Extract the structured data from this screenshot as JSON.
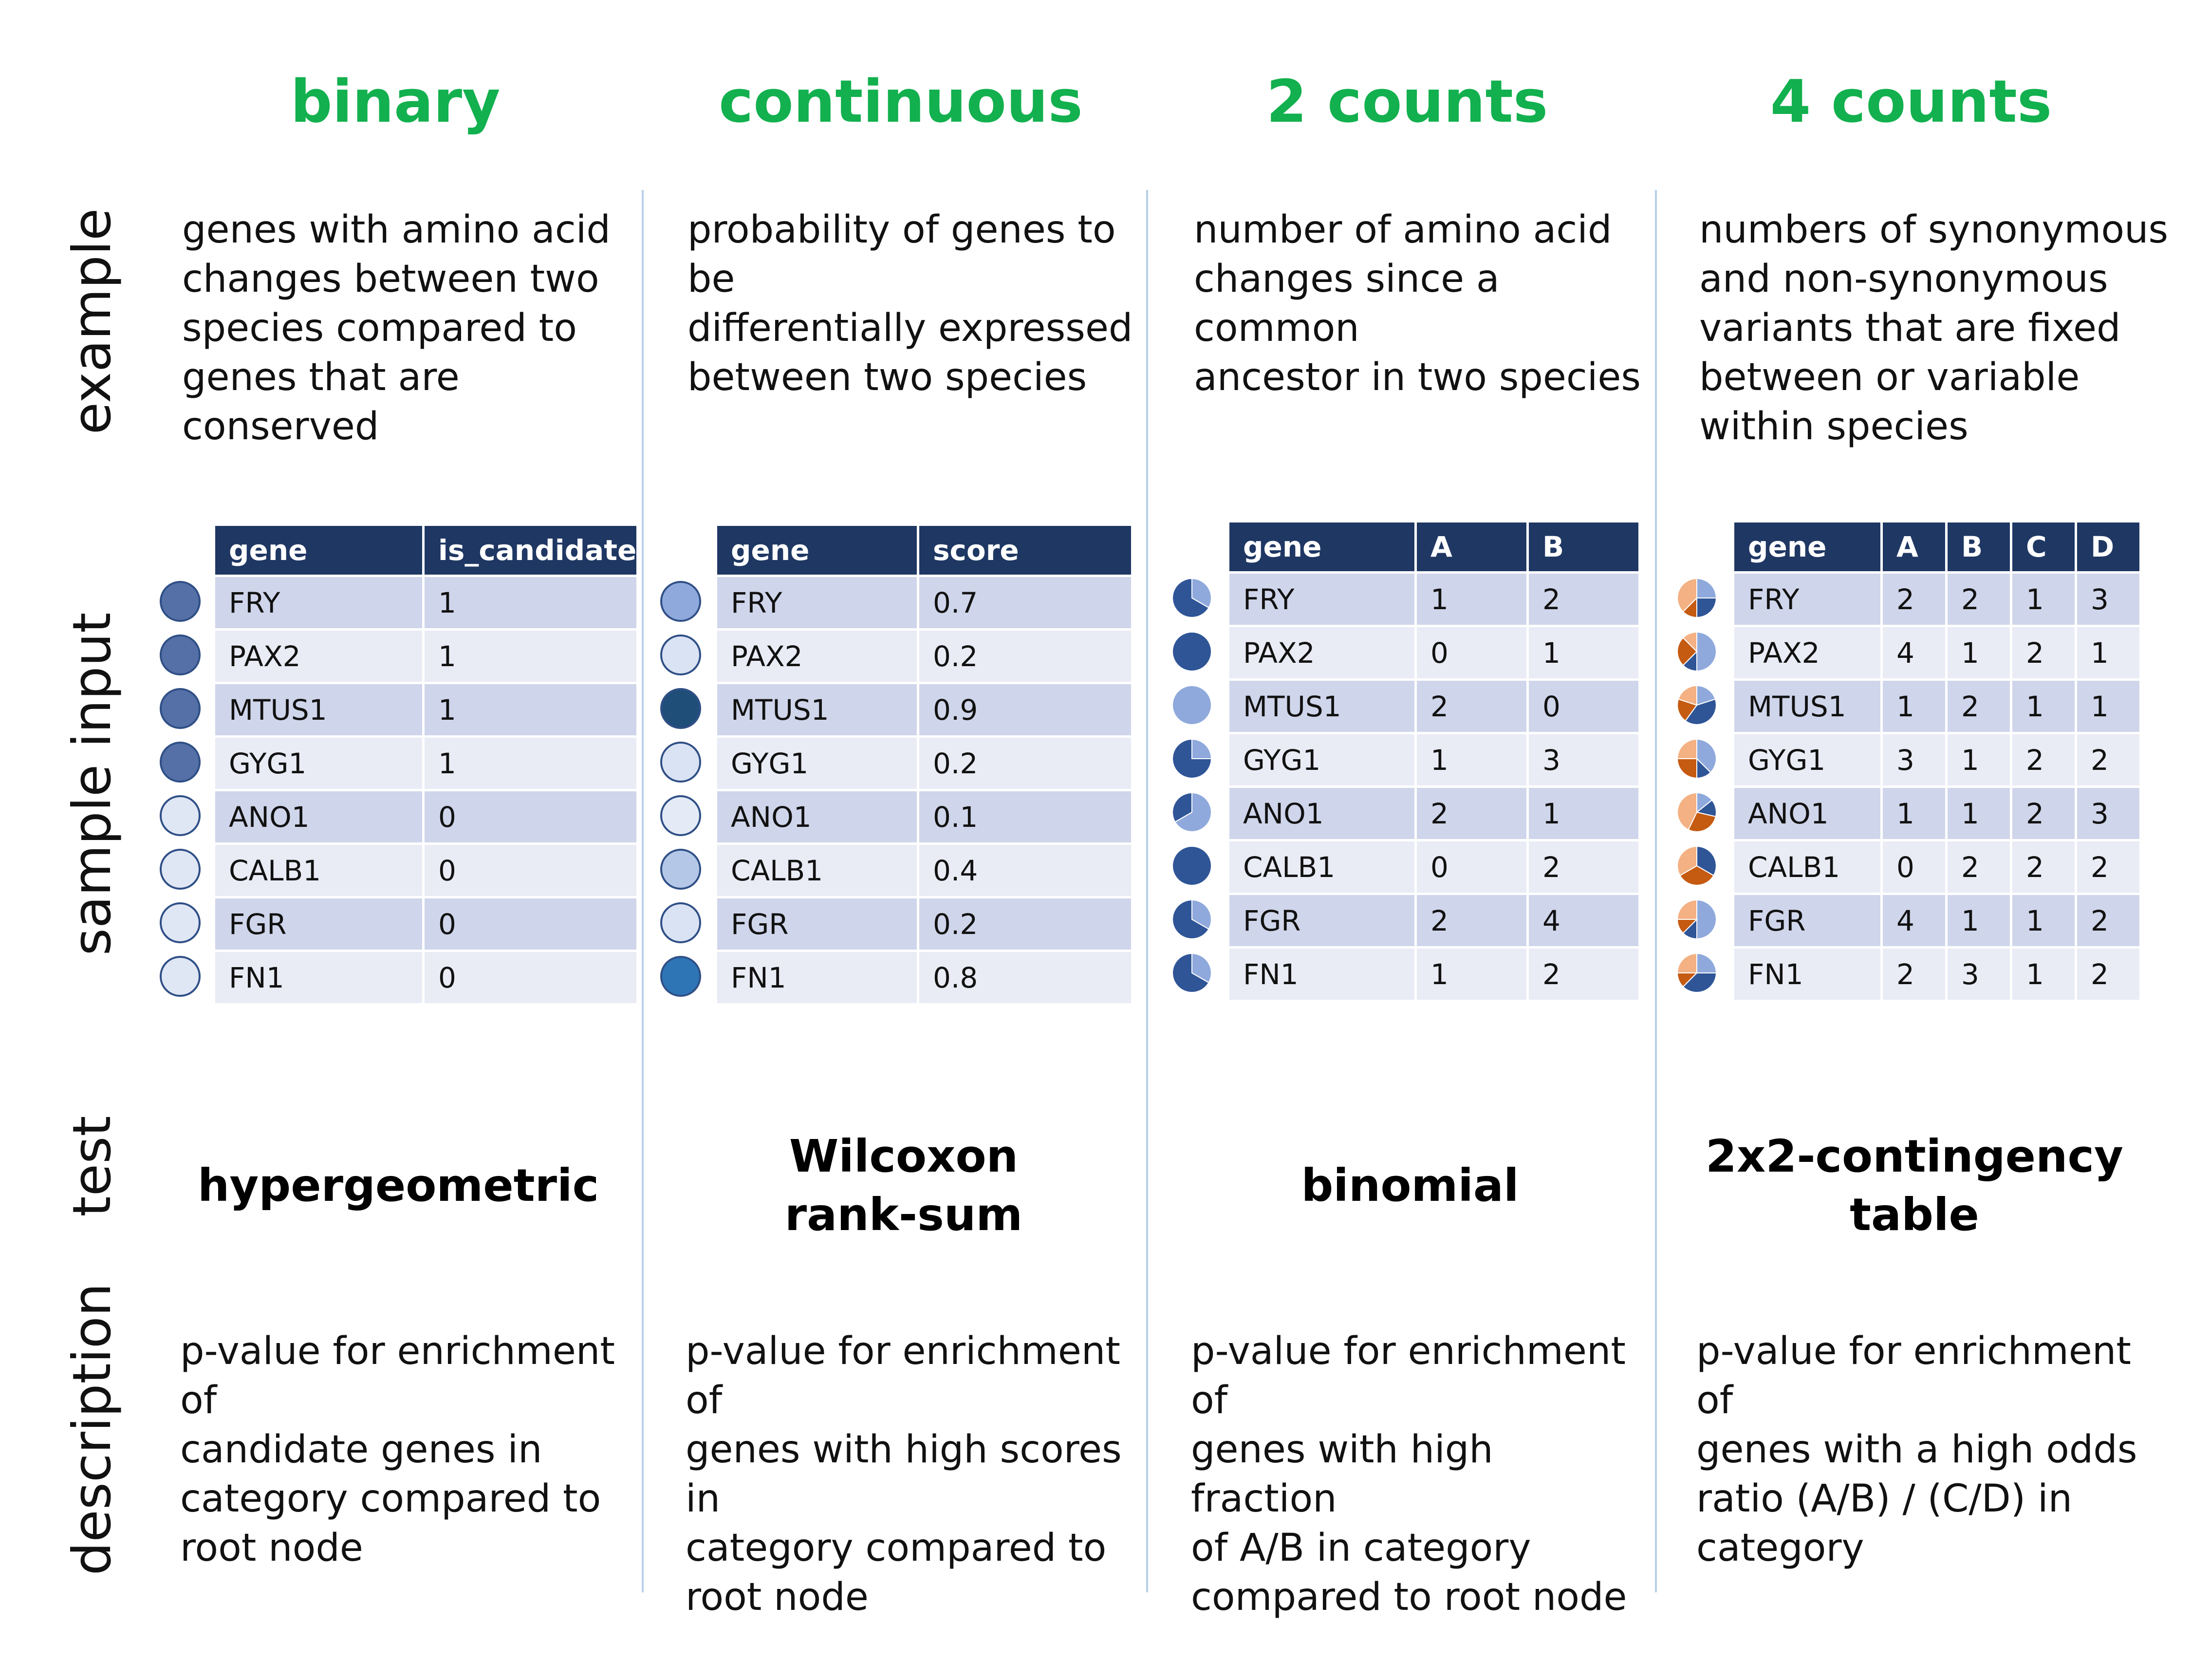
{
  "columns": [
    {
      "title": "binary",
      "example": [
        "genes with amino acid",
        "changes between two",
        "species compared to",
        "genes that are conserved"
      ],
      "table": {
        "headers": [
          "gene",
          "is_candidate"
        ],
        "rows": [
          [
            "FRY",
            "1"
          ],
          [
            "PAX2",
            "1"
          ],
          [
            "MTUS1",
            "1"
          ],
          [
            "GYG1",
            "1"
          ],
          [
            "ANO1",
            "0"
          ],
          [
            "CALB1",
            "0"
          ],
          [
            "FGR",
            "0"
          ],
          [
            "FN1",
            "0"
          ]
        ]
      },
      "markers": {
        "type": "circle",
        "colors": [
          "#5570a6",
          "#5570a6",
          "#5570a6",
          "#5570a6",
          "#dfe6f4",
          "#dfe6f4",
          "#dfe6f4",
          "#dfe6f4"
        ]
      },
      "test": [
        "hypergeometric"
      ],
      "description": [
        "p-value for enrichment of",
        "candidate genes in",
        "category compared to",
        "root node"
      ]
    },
    {
      "title": "continuous",
      "example": [
        "probability of genes to be",
        "differentially expressed",
        "between two species"
      ],
      "table": {
        "headers": [
          "gene",
          "score"
        ],
        "rows": [
          [
            "FRY",
            "0.7"
          ],
          [
            "PAX2",
            "0.2"
          ],
          [
            "MTUS1",
            "0.9"
          ],
          [
            "GYG1",
            "0.2"
          ],
          [
            "ANO1",
            "0.1"
          ],
          [
            "CALB1",
            "0.4"
          ],
          [
            "FGR",
            "0.2"
          ],
          [
            "FN1",
            "0.8"
          ]
        ]
      },
      "markers": {
        "type": "circle",
        "colors": [
          "#8fa9dc",
          "#dae3f3",
          "#1f4e79",
          "#dae3f3",
          "#e4ebf6",
          "#b4c7e7",
          "#dae3f3",
          "#2e75b6"
        ]
      },
      "test": [
        "Wilcoxon",
        "rank-sum"
      ],
      "description": [
        "p-value for enrichment of",
        "genes with high scores in",
        "category compared to",
        "root node"
      ]
    },
    {
      "title": "2 counts",
      "example": [
        "number of amino acid",
        "changes since a common",
        "ancestor in two species"
      ],
      "table": {
        "headers": [
          "gene",
          "A",
          "B"
        ],
        "rows": [
          [
            "FRY",
            "1",
            "2"
          ],
          [
            "PAX2",
            "0",
            "1"
          ],
          [
            "MTUS1",
            "2",
            "0"
          ],
          [
            "GYG1",
            "1",
            "3"
          ],
          [
            "ANO1",
            "2",
            "1"
          ],
          [
            "CALB1",
            "0",
            "2"
          ],
          [
            "FGR",
            "2",
            "4"
          ],
          [
            "FN1",
            "1",
            "2"
          ]
        ]
      },
      "markers": {
        "type": "pie",
        "colors": [
          "#8fa9dc",
          "#2f5597"
        ]
      },
      "test": [
        "binomial"
      ],
      "description": [
        "p-value for enrichment of",
        "genes with high fraction",
        "of A/B in category",
        "compared to root node"
      ]
    },
    {
      "title": "4 counts",
      "example": [
        "numbers of synonymous",
        "and non-synonymous",
        "variants that are fixed",
        "between or variable",
        "within species"
      ],
      "table": {
        "headers": [
          "gene",
          "A",
          "B",
          "C",
          "D"
        ],
        "rows": [
          [
            "FRY",
            "2",
            "2",
            "1",
            "3"
          ],
          [
            "PAX2",
            "4",
            "1",
            "2",
            "1"
          ],
          [
            "MTUS1",
            "1",
            "2",
            "1",
            "1"
          ],
          [
            "GYG1",
            "3",
            "1",
            "2",
            "2"
          ],
          [
            "ANO1",
            "1",
            "1",
            "2",
            "3"
          ],
          [
            "CALB1",
            "0",
            "2",
            "2",
            "2"
          ],
          [
            "FGR",
            "4",
            "1",
            "1",
            "2"
          ],
          [
            "FN1",
            "2",
            "3",
            "1",
            "2"
          ]
        ]
      },
      "markers": {
        "type": "pie",
        "colors": [
          "#8fa9dc",
          "#2f5597",
          "#c55a11",
          "#f4b183"
        ]
      },
      "test": [
        "2x2-contingency",
        "table"
      ],
      "description": [
        "p-value for enrichment of",
        "genes with a high odds",
        "ratio (A/B) / (C/D) in",
        "category"
      ]
    }
  ],
  "row_labels": [
    "example",
    "sample input",
    "test",
    "description"
  ]
}
